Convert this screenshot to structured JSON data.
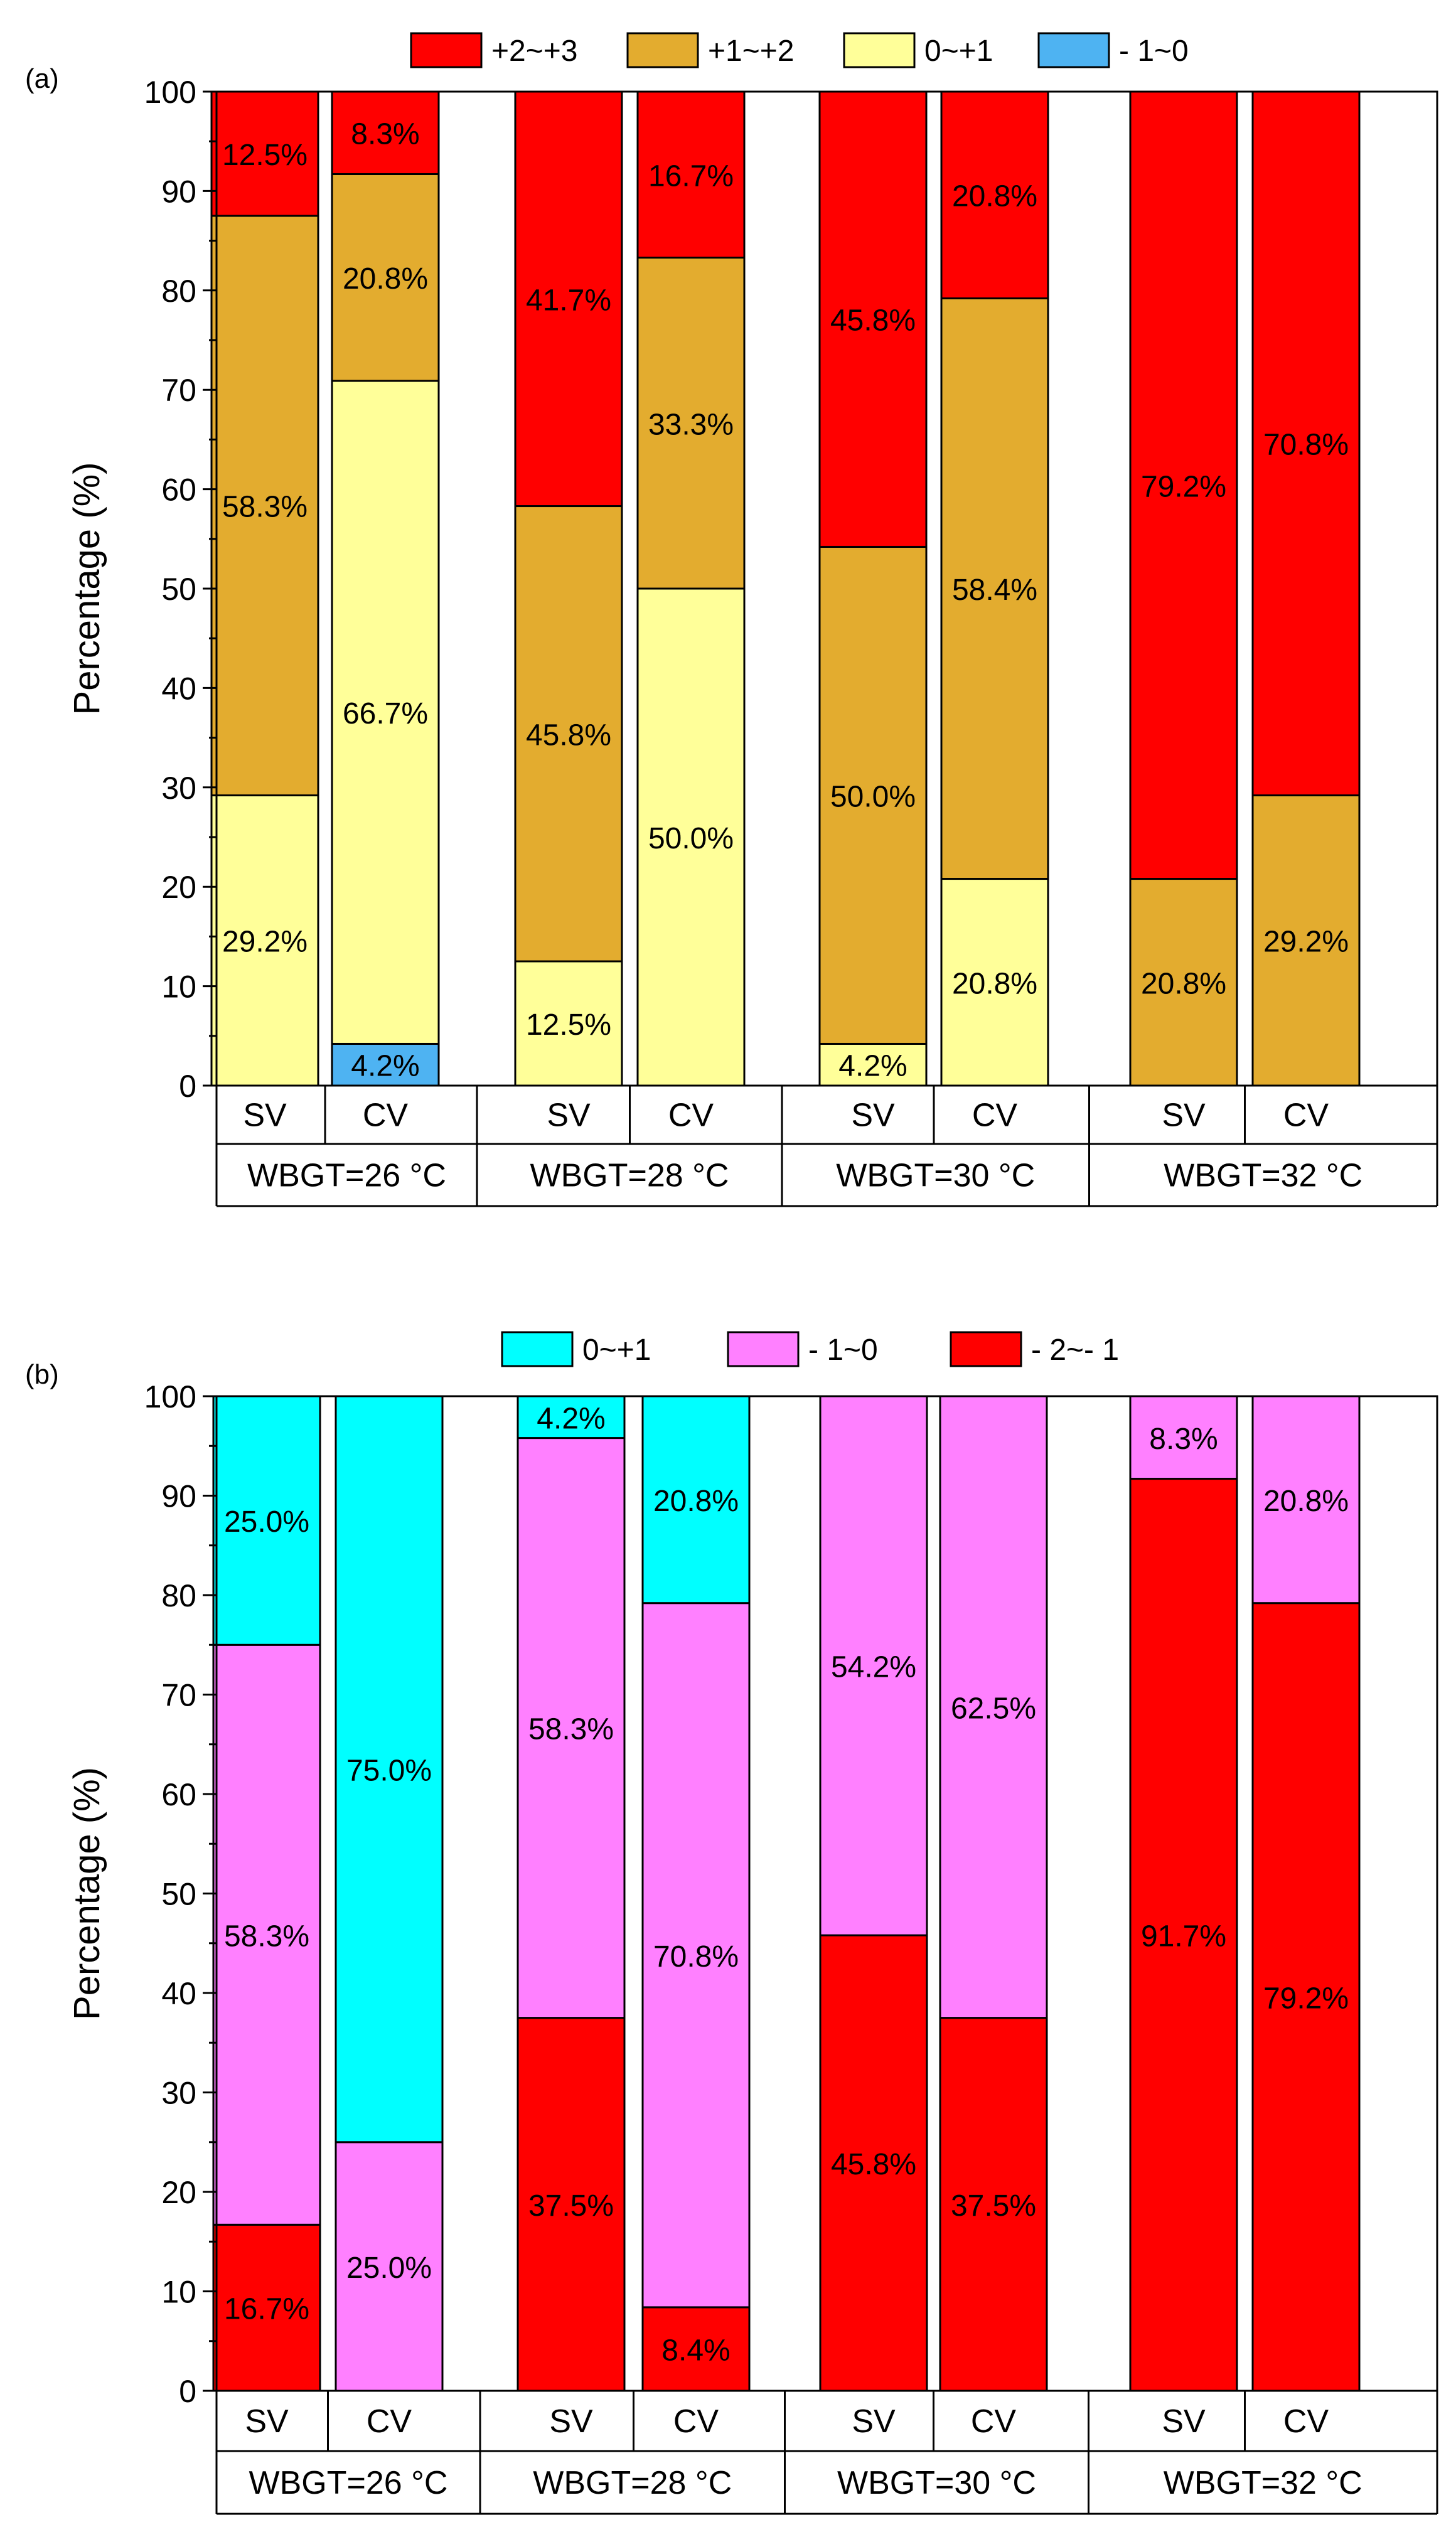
{
  "chart_data": [
    {
      "type": "bar",
      "stacked": true,
      "panel_label": "(a)",
      "ylabel": "Percentage (%)",
      "ylim": [
        0,
        100
      ],
      "yticks": [
        0,
        10,
        20,
        30,
        40,
        50,
        60,
        70,
        80,
        90,
        100
      ],
      "categories": [
        "SV",
        "CV",
        "SV",
        "CV",
        "SV",
        "CV",
        "SV",
        "CV"
      ],
      "groups": [
        "WBGT=26 °C",
        "WBGT=28 °C",
        "WBGT=30 °C",
        "WBGT=32 °C"
      ],
      "legend": {
        "placement": "top-center",
        "entries": [
          {
            "name": "+2~+3",
            "color": "#ff0000"
          },
          {
            "name": "+1~+2",
            "color": "#e3ac2f"
          },
          {
            "name": "0~+1",
            "color": "#ffff99"
          },
          {
            "name": "- 1~0",
            "color": "#4eb3f2"
          }
        ]
      },
      "stack_order": [
        "- 1~0",
        "0~+1",
        "+1~+2",
        "+2~+3"
      ],
      "series": [
        {
          "name": "- 1~0",
          "color": "#4eb3f2",
          "values": [
            0,
            4.2,
            0,
            0,
            0,
            0,
            0,
            0
          ],
          "labels": [
            "",
            "4.2%",
            "",
            "",
            "",
            "",
            "",
            ""
          ]
        },
        {
          "name": "0~+1",
          "color": "#ffff99",
          "values": [
            29.2,
            66.7,
            12.5,
            50.0,
            4.2,
            20.8,
            0,
            0
          ],
          "labels": [
            "29.2%",
            "66.7%",
            "12.5%",
            "50.0%",
            "4.2%",
            "20.8%",
            "",
            ""
          ]
        },
        {
          "name": "+1~+2",
          "color": "#e3ac2f",
          "values": [
            58.3,
            20.8,
            45.8,
            33.3,
            50.0,
            58.4,
            20.8,
            29.2
          ],
          "labels": [
            "58.3%",
            "20.8%",
            "45.8%",
            "33.3%",
            "50.0%",
            "58.4%",
            "20.8%",
            "29.2%"
          ]
        },
        {
          "name": "+2~+3",
          "color": "#ff0000",
          "values": [
            12.5,
            8.3,
            41.7,
            16.7,
            45.8,
            20.8,
            79.2,
            70.8
          ],
          "labels": [
            "12.5%",
            "8.3%",
            "41.7%",
            "16.7%",
            "45.8%",
            "20.8%",
            "79.2%",
            "70.8%"
          ]
        }
      ]
    },
    {
      "type": "bar",
      "stacked": true,
      "panel_label": "(b)",
      "ylabel": "Percentage (%)",
      "ylim": [
        0,
        100
      ],
      "yticks": [
        0,
        10,
        20,
        30,
        40,
        50,
        60,
        70,
        80,
        90,
        100
      ],
      "categories": [
        "SV",
        "CV",
        "SV",
        "CV",
        "SV",
        "CV",
        "SV",
        "CV"
      ],
      "groups": [
        "WBGT=26 °C",
        "WBGT=28 °C",
        "WBGT=30 °C",
        "WBGT=32 °C"
      ],
      "legend": {
        "placement": "top-center",
        "entries": [
          {
            "name": "0~+1",
            "color": "#00ffff"
          },
          {
            "name": "- 1~0",
            "color": "#ff80ff"
          },
          {
            "name": "- 2~- 1",
            "color": "#ff0000"
          }
        ]
      },
      "stack_order": [
        "- 2~- 1",
        "- 1~0",
        "0~+1"
      ],
      "series": [
        {
          "name": "- 2~- 1",
          "color": "#ff0000",
          "values": [
            16.7,
            0,
            37.5,
            8.4,
            45.8,
            37.5,
            91.7,
            79.2
          ],
          "labels": [
            "16.7%",
            "",
            "37.5%",
            "8.4%",
            "45.8%",
            "37.5%",
            "91.7%",
            "79.2%"
          ]
        },
        {
          "name": "- 1~0",
          "color": "#ff80ff",
          "values": [
            58.3,
            25.0,
            58.3,
            70.8,
            54.2,
            62.5,
            8.3,
            20.8
          ],
          "labels": [
            "58.3%",
            "25.0%",
            "58.3%",
            "70.8%",
            "54.2%",
            "62.5%",
            "8.3%",
            "20.8%"
          ]
        },
        {
          "name": "0~+1",
          "color": "#00ffff",
          "values": [
            25.0,
            75.0,
            4.2,
            20.8,
            0,
            0,
            0,
            0
          ],
          "labels": [
            "25.0%",
            "75.0%",
            "4.2%",
            "20.8%",
            "",
            "",
            "",
            ""
          ]
        }
      ]
    }
  ]
}
